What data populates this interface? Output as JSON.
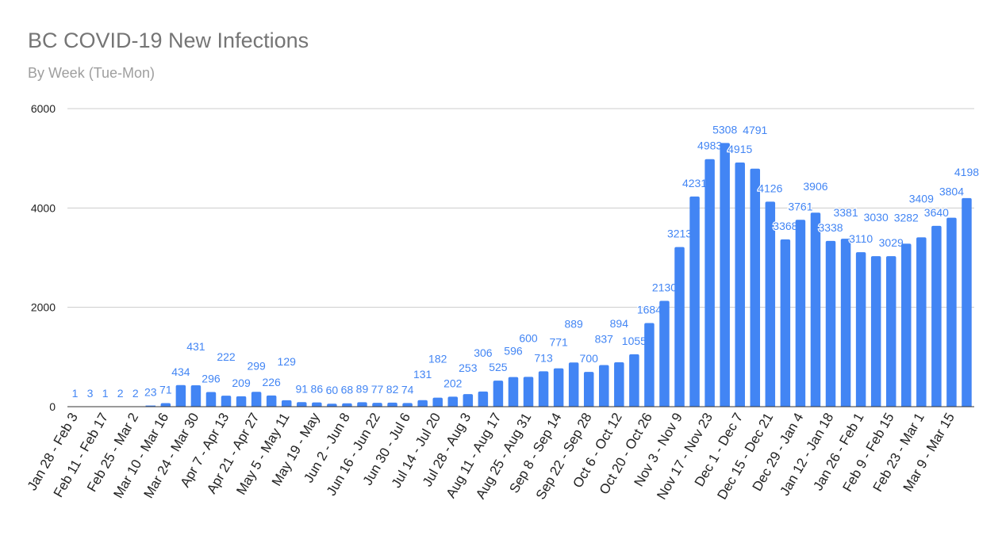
{
  "chart_data": {
    "type": "bar",
    "title": "BC COVID-19 New Infections",
    "subtitle": "By Week (Tue-Mon)",
    "xlabel": "",
    "ylabel": "",
    "ylim": [
      0,
      6000
    ],
    "yticks": [
      0,
      2000,
      4000,
      6000
    ],
    "grid": true,
    "bar_color": "#4285f4",
    "label_color": "#4285f4",
    "tick_labels": [
      "Jan 28 - Feb 3",
      "Feb 11 - Feb 17",
      "Feb 25 - Mar 2",
      "Mar 10 - Mar 16",
      "Mar 24 - Mar 30",
      "Apr 7 - Apr 13",
      "Apr 21 - Apr 27",
      "May 5 - May 11",
      "May 19 - May",
      "Jun 2 - Jun 8",
      "Jun 16 - Jun 22",
      "Jun 30 - Jul 6",
      "Jul 14 - Jul 20",
      "Jul 28 - Aug 3",
      "Aug 11 - Aug 17",
      "Aug 25 - Aug 31",
      "Sep 8 - Sep 14",
      "Sep 22 - Sep 28",
      "Oct 6 - Oct 12",
      "Oct 20 - Oct 26",
      "Nov 3 - Nov 9",
      "Nov 17 - Nov 23",
      "Dec 1 - Dec 7",
      "Dec 15 - Dec 21",
      "Dec 29 - Jan 4",
      "Jan 12 - Jan 18",
      "Jan 26 - Feb 1",
      "Feb 9 - Feb 15",
      "Feb 23 - Mar 1",
      "Mar 9 - Mar 15"
    ],
    "values": [
      1,
      3,
      1,
      2,
      2,
      23,
      71,
      434,
      431,
      296,
      222,
      209,
      299,
      226,
      129,
      91,
      86,
      60,
      68,
      89,
      77,
      82,
      74,
      131,
      182,
      202,
      253,
      306,
      525,
      596,
      600,
      713,
      771,
      889,
      700,
      837,
      894,
      1055,
      1684,
      2130,
      3213,
      4231,
      4983,
      5308,
      4915,
      4791,
      4126,
      3368,
      3761,
      3906,
      3338,
      3381,
      3110,
      3030,
      3029,
      3282,
      3409,
      3640,
      3804,
      4198
    ]
  }
}
